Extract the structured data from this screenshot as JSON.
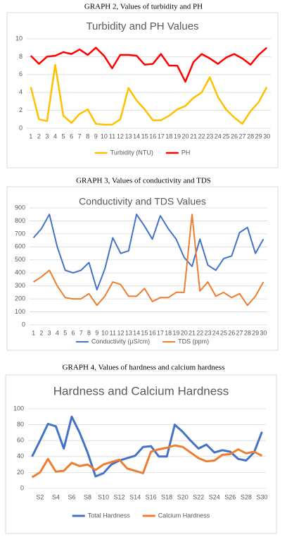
{
  "chart_data": [
    {
      "type": "line",
      "caption": "GRAPH 2, Values of  turbidity and PH",
      "title": "Turbidity and PH Values",
      "categories": [
        "1",
        "2",
        "3",
        "4",
        "5",
        "6",
        "7",
        "8",
        "9",
        "10",
        "11",
        "12",
        "13",
        "14",
        "15",
        "16",
        "17",
        "18",
        "19",
        "20",
        "21",
        "22",
        "23",
        "24",
        "25",
        "26",
        "27",
        "28",
        "29",
        "30"
      ],
      "series": [
        {
          "name": "Turbidity (NTU)",
          "color": "#FFC000",
          "values": [
            4.6,
            1.0,
            0.8,
            7.1,
            1.4,
            0.6,
            1.6,
            2.1,
            0.5,
            0.4,
            0.4,
            1.0,
            4.5,
            3.1,
            2.1,
            0.9,
            0.9,
            1.4,
            2.1,
            2.5,
            3.4,
            4.0,
            5.7,
            3.5,
            2.1,
            1.2,
            0.5,
            1.9,
            2.9,
            4.6
          ]
        },
        {
          "name": "PH",
          "color": "#FF0000",
          "values": [
            8.1,
            7.2,
            8.0,
            8.1,
            8.5,
            8.3,
            8.8,
            8.2,
            9.0,
            8.1,
            6.7,
            8.2,
            8.2,
            8.1,
            7.1,
            7.2,
            8.3,
            7.0,
            7.0,
            5.2,
            7.4,
            8.3,
            7.8,
            7.2,
            7.9,
            8.3,
            7.8,
            7.1,
            8.2,
            9.0
          ]
        }
      ],
      "ylim": [
        0,
        10
      ],
      "yticks": [
        0,
        2,
        4,
        6,
        8,
        10
      ],
      "grid": true,
      "legend": "bottom"
    },
    {
      "type": "line",
      "caption": "GRAPH 3, Values of conductivity and TDS",
      "title": "Conductivity and TDS Values",
      "categories": [
        "1",
        "2",
        "3",
        "4",
        "5",
        "6",
        "7",
        "8",
        "9",
        "10",
        "11",
        "12",
        "13",
        "14",
        "15",
        "16",
        "17",
        "18",
        "19",
        "20",
        "21",
        "22",
        "23",
        "24",
        "25",
        "26",
        "27",
        "28",
        "29",
        "30"
      ],
      "series": [
        {
          "name": "Conductivity (µS/cm)",
          "color": "#4472C4",
          "values": [
            670,
            740,
            850,
            600,
            420,
            400,
            420,
            480,
            270,
            430,
            670,
            550,
            570,
            850,
            760,
            660,
            840,
            740,
            660,
            520,
            450,
            660,
            460,
            420,
            510,
            530,
            710,
            750,
            550,
            660
          ]
        },
        {
          "name": "TDS (ppm)",
          "color": "#ED7D31",
          "values": [
            330,
            370,
            420,
            300,
            210,
            200,
            200,
            240,
            150,
            220,
            330,
            310,
            220,
            220,
            280,
            180,
            210,
            210,
            250,
            250,
            850,
            260,
            330,
            220,
            250,
            210,
            240,
            150,
            220,
            330
          ]
        }
      ],
      "ylim": [
        0,
        900
      ],
      "yticks": [
        0,
        100,
        200,
        300,
        400,
        500,
        600,
        700,
        800,
        900
      ],
      "grid": true,
      "legend": "bottom"
    },
    {
      "type": "line",
      "caption": "GRAPH 4, Values of  hardness and calcium hardness",
      "title": "Hardness and Calcium Hardness",
      "categories": [
        null,
        "S2",
        null,
        "S4",
        null,
        "S6",
        null,
        "S8",
        null,
        "S10",
        null,
        "S12",
        null,
        "S14",
        null,
        "S16",
        null,
        "S18",
        null,
        "S20",
        null,
        "S22",
        null,
        "S24",
        null,
        "S26",
        null,
        "S28",
        null,
        "S30"
      ],
      "series": [
        {
          "name": "Total Hardness",
          "color": "#4472C4",
          "values": [
            40,
            60,
            81,
            78,
            50,
            90,
            70,
            45,
            15,
            19,
            30,
            35,
            38,
            41,
            52,
            53,
            40,
            40,
            80,
            71,
            60,
            50,
            55,
            45,
            48,
            46,
            37,
            35,
            45,
            71
          ]
        },
        {
          "name": "Calcium Hardness",
          "color": "#ED7D31",
          "values": [
            14,
            20,
            37,
            21,
            22,
            32,
            28,
            30,
            23,
            30,
            33,
            36,
            25,
            22,
            19,
            46,
            49,
            51,
            54,
            52,
            45,
            38,
            34,
            35,
            42,
            43,
            49,
            44,
            46,
            41
          ]
        }
      ],
      "ylim": [
        0,
        100
      ],
      "yticks": [
        0,
        20,
        40,
        60,
        80,
        100
      ],
      "grid": true,
      "legend": "bottom"
    }
  ]
}
